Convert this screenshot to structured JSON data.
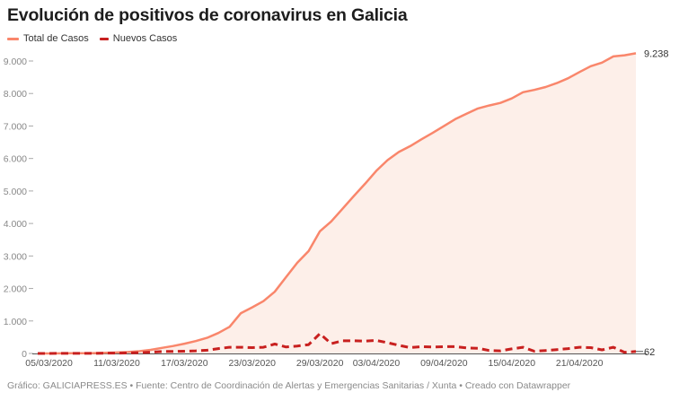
{
  "chart_data": {
    "type": "line",
    "title": "Evolución de positivos de coronavirus en Galicia",
    "xlabel": "",
    "ylabel": "",
    "ylim": [
      0,
      9000
    ],
    "yticks": [
      0,
      1000,
      2000,
      3000,
      4000,
      5000,
      6000,
      7000,
      8000,
      9000
    ],
    "ytick_labels": [
      "0",
      "1.000",
      "2.000",
      "3.000",
      "4.000",
      "5.000",
      "6.000",
      "7.000",
      "8.000",
      "9.000"
    ],
    "xtick_labels": [
      "05/03/2020",
      "11/03/2020",
      "17/03/2020",
      "23/03/2020",
      "29/03/2020",
      "03/04/2020",
      "09/04/2020",
      "15/04/2020",
      "21/04/2020"
    ],
    "x_start": "04/03/2020",
    "x_end": "26/04/2020",
    "grid": false,
    "legend": "top-left",
    "series": [
      {
        "name": "Total de Casos",
        "color": "#f9866b",
        "fill": "#fdefe9",
        "style": "solid",
        "end_label": "9.238",
        "values": [
          1,
          1,
          3,
          5,
          8,
          12,
          20,
          30,
          45,
          70,
          110,
          170,
          230,
          300,
          380,
          480,
          630,
          820,
          1240,
          1420,
          1610,
          1900,
          2350,
          2790,
          3150,
          3760,
          4060,
          4450,
          4840,
          5220,
          5620,
          5950,
          6200,
          6380,
          6590,
          6790,
          7000,
          7210,
          7380,
          7540,
          7630,
          7710,
          7850,
          8040,
          8110,
          8200,
          8320,
          8470,
          8660,
          8840,
          8950,
          9140,
          9176,
          9238
        ]
      },
      {
        "name": "Nuevos Casos",
        "color": "#c8201f",
        "style": "dashed",
        "end_label": "62",
        "values": [
          1,
          0,
          2,
          2,
          3,
          4,
          8,
          10,
          15,
          25,
          40,
          60,
          60,
          70,
          80,
          100,
          150,
          190,
          190,
          180,
          190,
          290,
          200,
          230,
          270,
          610,
          300,
          390,
          390,
          380,
          400,
          330,
          250,
          180,
          210,
          200,
          210,
          210,
          170,
          160,
          90,
          80,
          140,
          190,
          70,
          90,
          120,
          150,
          190,
          180,
          110,
          190,
          36,
          62
        ]
      }
    ]
  },
  "footer": "Gráfico: GALICIAPRESS.ES • Fuente: Centro de Coordinación de Alertas y Emergencias Sanitarias / Xunta • Creado con Datawrapper"
}
